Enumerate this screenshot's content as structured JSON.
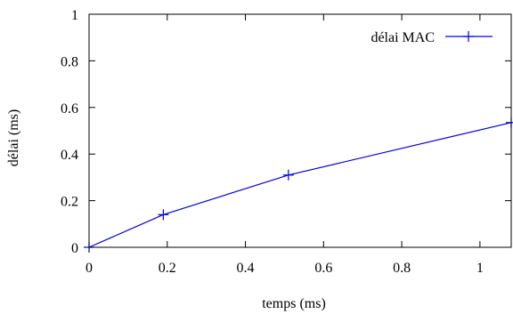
{
  "chart_data": {
    "type": "line",
    "xlabel": "temps (ms)",
    "ylabel": "délai (ms)",
    "xlim": [
      0,
      1.08
    ],
    "ylim": [
      0,
      1
    ],
    "x_ticks": [
      "0",
      "0.2",
      "0.4",
      "0.6",
      "0.8",
      "1"
    ],
    "x_tick_values": [
      0,
      0.2,
      0.4,
      0.6,
      0.8,
      1.0
    ],
    "y_ticks": [
      "0",
      "0.2",
      "0.4",
      "0.6",
      "0.8",
      "1"
    ],
    "y_tick_values": [
      0,
      0.2,
      0.4,
      0.6,
      0.8,
      1.0
    ],
    "grid": false,
    "legend_position": "top-right",
    "series": [
      {
        "name": "délai MAC",
        "color": "#0000e0",
        "marker": "plus",
        "x": [
          0,
          0.19,
          0.51,
          1.08
        ],
        "y": [
          0,
          0.14,
          0.31,
          0.535
        ]
      }
    ]
  }
}
